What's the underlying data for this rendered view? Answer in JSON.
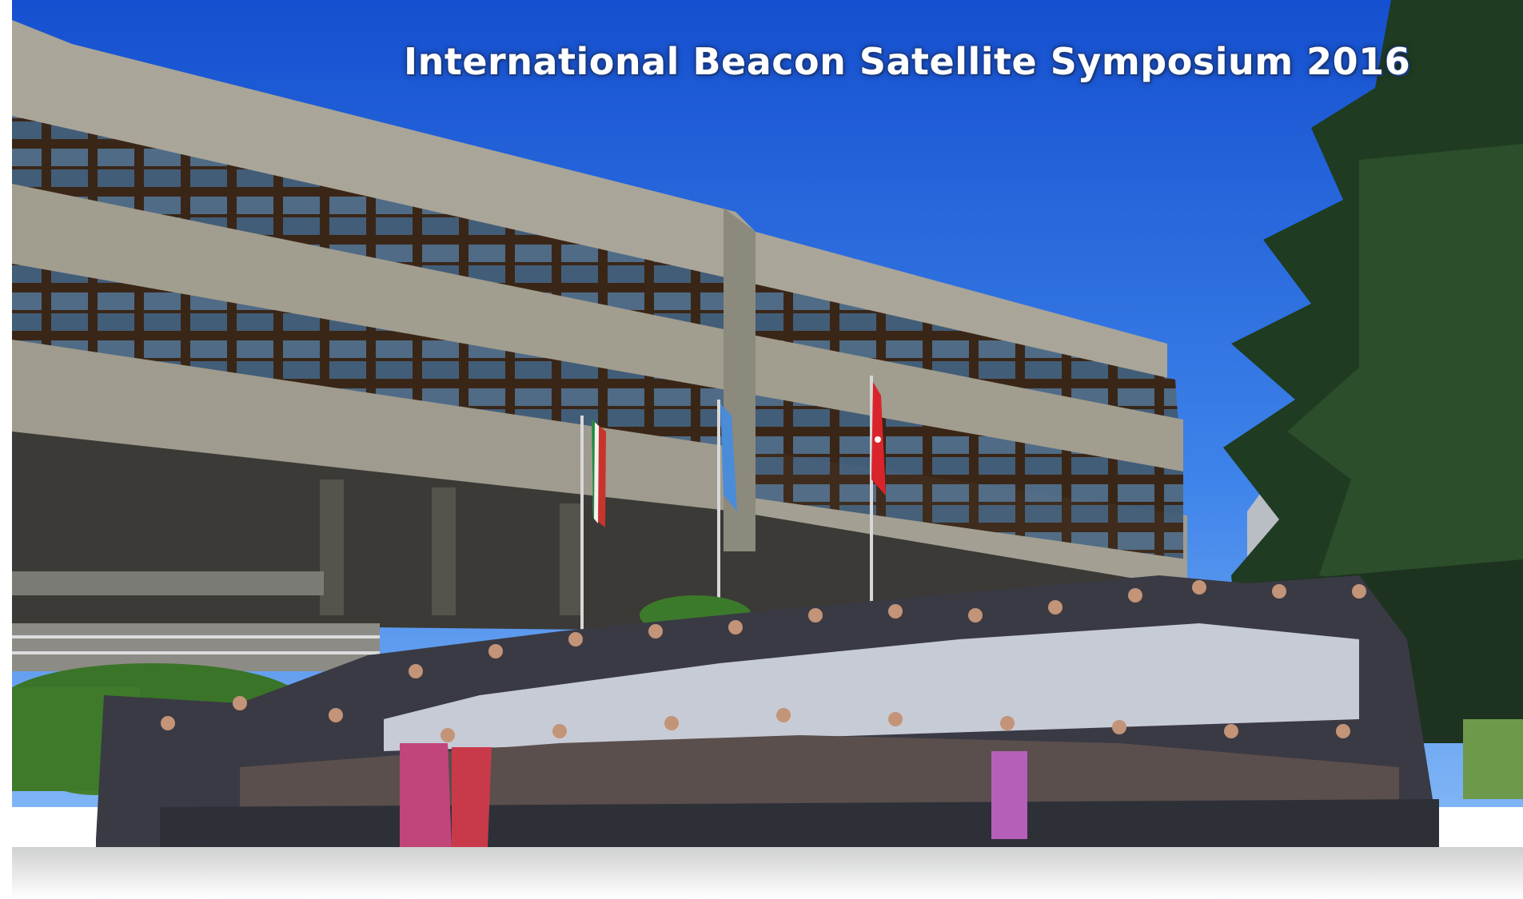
{
  "photo": {
    "caption": "International Beacon Satellite Symposium 2016"
  },
  "colors": {
    "sky_top": "#1756d6",
    "sky_bottom": "#5f9df0",
    "concrete": "#a7a395",
    "concrete_dark": "#6f6c62",
    "window": "#3b2a1e",
    "glass": "#5f7d9a",
    "tree": "#1e3a22",
    "hedge": "#3f7a2c",
    "ground": "#e4e4e2"
  },
  "icons": {
    "flag_left": "italy-flag-icon",
    "flag_center": "un-flag-icon",
    "flag_right": "turkey-flag-icon"
  }
}
